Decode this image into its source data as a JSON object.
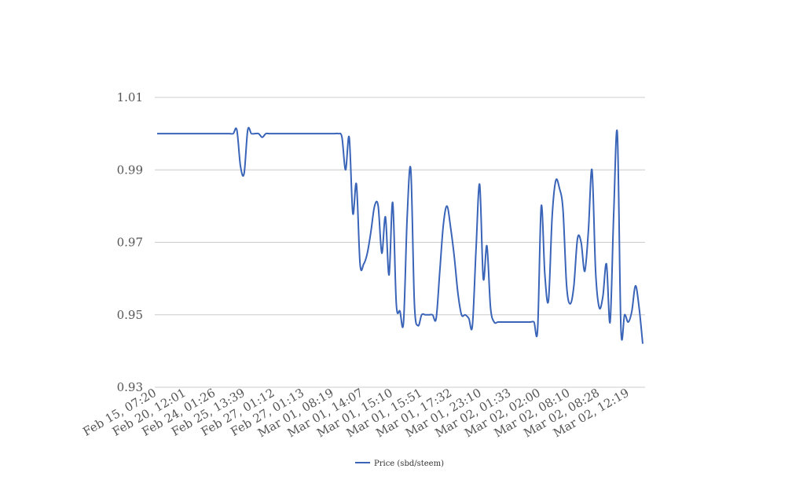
{
  "chart_data": {
    "type": "line",
    "title": "",
    "xlabel": "",
    "ylabel": "",
    "ylim": [
      0.93,
      1.01
    ],
    "yticks": [
      "0.93",
      "0.95",
      "0.97",
      "0.99",
      "1.01"
    ],
    "xtick_labels": [
      "Feb 15, 07:20",
      "Feb 20, 12:01",
      "Feb 24, 01:26",
      "Feb 25, 13:39",
      "Feb 27, 01:12",
      "Feb 27, 01:13",
      "Mar 01, 08:19",
      "Mar 01, 14:07",
      "Mar 01, 15:10",
      "Mar 01, 15:51",
      "Mar 01, 17:32",
      "Mar 01, 23:10",
      "Mar 02, 01:33",
      "Mar 02, 02:00",
      "Mar 02, 08:10",
      "Mar 02, 08:28",
      "Mar 02, 12:19"
    ],
    "grid": true,
    "legend_position": "bottom",
    "color": "#3a64b8",
    "series": [
      {
        "name": "Price (sbd/steem)",
        "values": [
          1.0,
          1.0,
          1.0,
          1.0,
          1.0,
          1.0,
          1.0,
          1.0,
          1.0,
          1.0,
          1.0,
          1.0,
          1.0,
          1.0,
          1.0,
          1.0,
          1.0,
          1.0,
          1.0,
          1.0,
          1.0,
          1.0,
          1.001,
          0.991,
          0.989,
          1.001,
          1.0,
          1.0,
          1.0,
          0.999,
          1.0,
          1.0,
          1.0,
          1.0,
          1.0,
          1.0,
          1.0,
          1.0,
          1.0,
          1.0,
          1.0,
          1.0,
          1.0,
          1.0,
          1.0,
          1.0,
          1.0,
          1.0,
          1.0,
          1.0,
          1.0,
          0.999,
          0.99,
          0.999,
          0.978,
          0.986,
          0.964,
          0.964,
          0.967,
          0.973,
          0.98,
          0.98,
          0.967,
          0.977,
          0.961,
          0.981,
          0.953,
          0.951,
          0.948,
          0.977,
          0.99,
          0.953,
          0.947,
          0.95,
          0.95,
          0.95,
          0.95,
          0.949,
          0.962,
          0.975,
          0.98,
          0.974,
          0.966,
          0.956,
          0.95,
          0.95,
          0.949,
          0.947,
          0.968,
          0.986,
          0.96,
          0.969,
          0.952,
          0.948,
          0.948,
          0.948,
          0.948,
          0.948,
          0.948,
          0.948,
          0.948,
          0.948,
          0.948,
          0.948,
          0.948,
          0.946,
          0.98,
          0.961,
          0.954,
          0.977,
          0.987,
          0.985,
          0.979,
          0.958,
          0.953,
          0.958,
          0.971,
          0.97,
          0.962,
          0.973,
          0.99,
          0.962,
          0.952,
          0.955,
          0.964,
          0.948,
          0.978,
          1.0,
          0.946,
          0.95,
          0.948,
          0.951,
          0.958,
          0.952,
          0.942
        ]
      }
    ]
  }
}
